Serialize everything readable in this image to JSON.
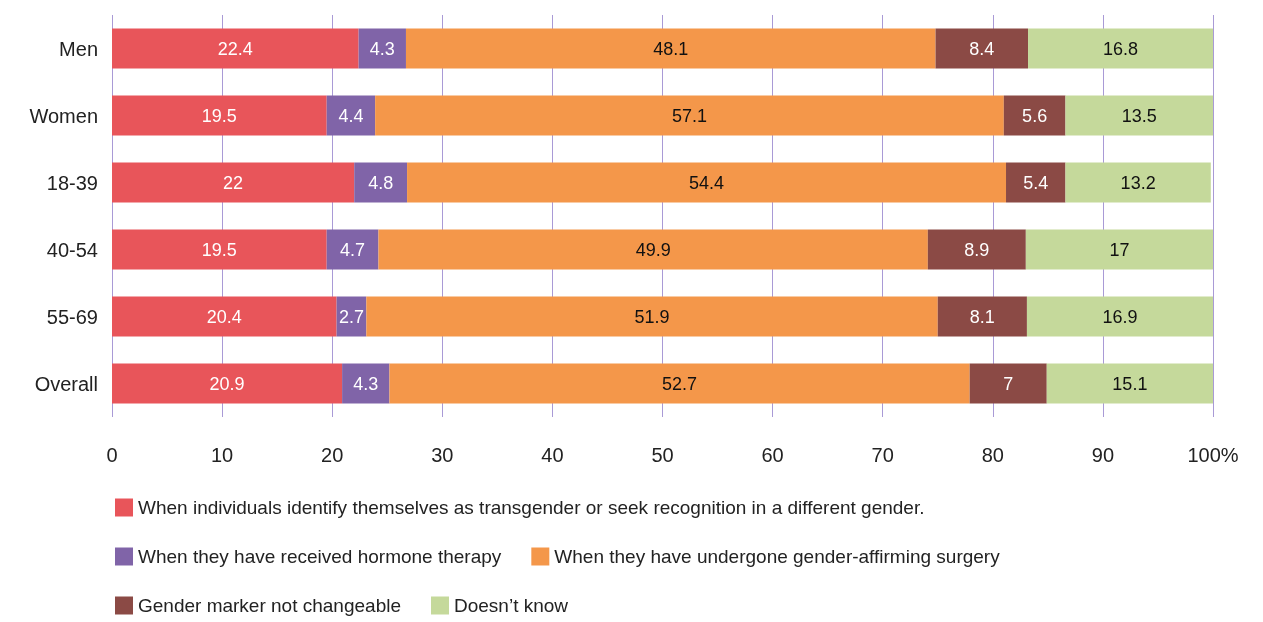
{
  "chart_data": {
    "type": "bar",
    "orientation": "horizontal",
    "stacked": true,
    "data_labels": true,
    "grid": "x",
    "legend": "bottom",
    "categories": [
      "Men",
      "Women",
      "18-39",
      "40-54",
      "55-69",
      "Overall"
    ],
    "xlim": [
      0,
      100
    ],
    "xticks": [
      0,
      10,
      20,
      30,
      40,
      50,
      60,
      70,
      80,
      90,
      {
        "value": 100,
        "label": "100%"
      }
    ],
    "series": [
      {
        "name": "When individuals identify themselves as transgender or seek recognition in a different gender.",
        "color": "#e8555a",
        "values": [
          22.4,
          19.5,
          22,
          19.5,
          20.4,
          20.9
        ]
      },
      {
        "name": "When they have received hormone therapy",
        "color": "#8064a8",
        "values": [
          4.3,
          4.4,
          4.8,
          4.7,
          2.7,
          4.3
        ]
      },
      {
        "name": "When they have undergone gender-affirming surgery",
        "color": "#f4974a",
        "values": [
          48.1,
          57.1,
          54.4,
          49.9,
          51.9,
          52.7
        ]
      },
      {
        "name": "Gender marker not changeable",
        "color": "#8b4a45",
        "values": [
          8.4,
          5.6,
          5.4,
          8.9,
          8.1,
          7
        ]
      },
      {
        "name": "Doesn’t know",
        "color": "#c5d99b",
        "values": [
          16.8,
          13.5,
          13.2,
          17,
          16.9,
          15.1
        ]
      }
    ]
  }
}
